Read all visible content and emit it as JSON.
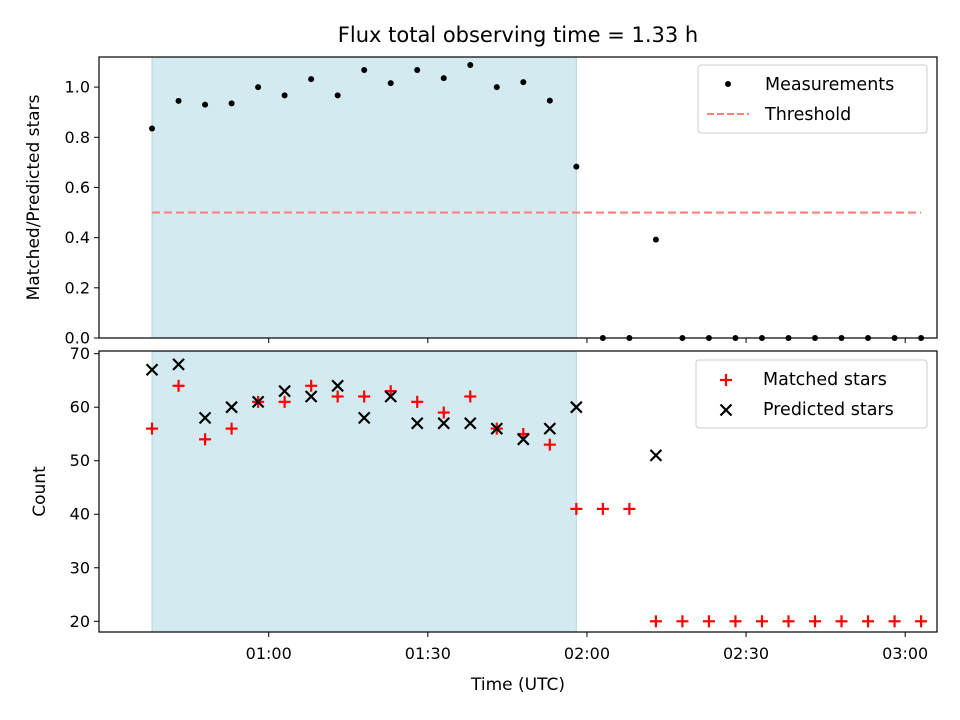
{
  "chart_data": [
    {
      "type": "scatter",
      "title": "Flux total observing time = 1.33 h",
      "ylabel": "Matched/Predicted stars",
      "xlabel": "",
      "ylim": [
        0,
        1.12
      ],
      "yticks": [
        "0.0",
        "0.2",
        "0.4",
        "0.6",
        "0.8",
        "1.0"
      ],
      "grid": false,
      "legend_position": "top-right",
      "shaded_region": {
        "x_start": "00:38",
        "x_end": "01:58",
        "color": "#d3eaf0"
      },
      "series": [
        {
          "name": "Measurements",
          "marker": "dot",
          "color": "#000000",
          "x": [
            "00:38",
            "00:43",
            "00:48",
            "00:53",
            "00:58",
            "01:03",
            "01:08",
            "01:13",
            "01:18",
            "01:23",
            "01:28",
            "01:33",
            "01:38",
            "01:43",
            "01:48",
            "01:53",
            "01:58",
            "02:03",
            "02:08",
            "02:13",
            "02:18",
            "02:23",
            "02:28",
            "02:33",
            "02:38",
            "02:43",
            "02:48",
            "02:53",
            "02:58",
            "03:03"
          ],
          "y": [
            0.835,
            0.945,
            0.93,
            0.935,
            1.0,
            0.967,
            1.032,
            0.967,
            1.068,
            1.016,
            1.068,
            1.036,
            1.088,
            1.0,
            1.02,
            0.946,
            0.683,
            0,
            0,
            0.392,
            0,
            0,
            0,
            0,
            0,
            0,
            0,
            0,
            0,
            0
          ]
        },
        {
          "name": "Threshold",
          "line_style": "dashed",
          "color": "#ff7f7f",
          "x": [
            "00:38",
            "03:03"
          ],
          "y": [
            0.5,
            0.5
          ]
        }
      ]
    },
    {
      "type": "scatter",
      "title": "",
      "ylabel": "Count",
      "xlabel": "Time (UTC)",
      "ylim": [
        18,
        70.5
      ],
      "yticks": [
        "20",
        "30",
        "40",
        "50",
        "60",
        "70"
      ],
      "xticks": [
        "01:00",
        "01:30",
        "02:00",
        "02:30",
        "03:00"
      ],
      "grid": false,
      "legend_position": "top-right",
      "shaded_region": {
        "x_start": "00:38",
        "x_end": "01:58",
        "color": "#d3eaf0"
      },
      "series": [
        {
          "name": "Matched stars",
          "marker": "plus",
          "color": "#ff0000",
          "x": [
            "00:38",
            "00:43",
            "00:48",
            "00:53",
            "00:58",
            "01:03",
            "01:08",
            "01:13",
            "01:18",
            "01:23",
            "01:28",
            "01:33",
            "01:38",
            "01:43",
            "01:48",
            "01:53",
            "01:58",
            "02:03",
            "02:08",
            "02:13",
            "02:18",
            "02:23",
            "02:28",
            "02:33",
            "02:38",
            "02:43",
            "02:48",
            "02:53",
            "02:58",
            "03:03"
          ],
          "y": [
            56,
            64,
            54,
            56,
            61,
            61,
            64,
            62,
            62,
            63,
            61,
            59,
            62,
            56,
            55,
            53,
            41,
            41,
            41,
            20,
            20,
            20,
            20,
            20,
            20,
            20,
            20,
            20,
            20,
            20
          ]
        },
        {
          "name": "Predicted stars",
          "marker": "x",
          "color": "#000000",
          "x": [
            "00:38",
            "00:43",
            "00:48",
            "00:53",
            "00:58",
            "01:03",
            "01:08",
            "01:13",
            "01:18",
            "01:23",
            "01:28",
            "01:33",
            "01:38",
            "01:43",
            "01:48",
            "01:53",
            "01:58",
            "02:13"
          ],
          "y": [
            67,
            68,
            58,
            60,
            61,
            63,
            62,
            64,
            58,
            62,
            57,
            57,
            57,
            56,
            54,
            56,
            60,
            51
          ]
        }
      ]
    }
  ]
}
